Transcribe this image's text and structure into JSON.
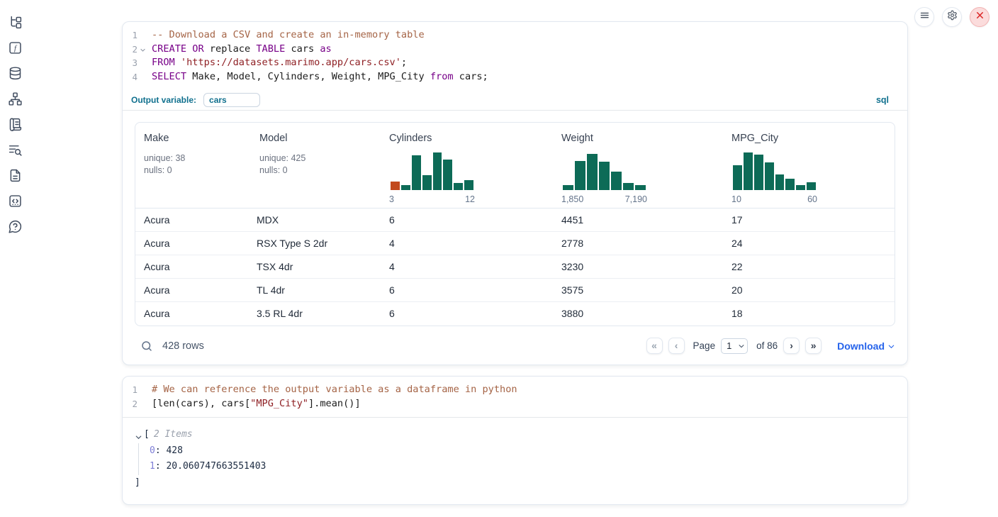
{
  "colors": {
    "hist_green": "#0d6b57",
    "hist_orange": "#c2491d",
    "accent_teal": "#10708e",
    "link_blue": "#2563eb",
    "keyword_purple": "#770088",
    "string_red": "#8f2024",
    "comment_brown": "#a56446"
  },
  "sidebar": {
    "icons": [
      "file-explorer",
      "variables",
      "data-sources",
      "dependency-graph",
      "outline",
      "logs",
      "documentation",
      "snippets",
      "help"
    ]
  },
  "topbar": {
    "buttons": [
      "menu",
      "settings",
      "shutdown"
    ]
  },
  "sql_cell": {
    "code": [
      {
        "num": "1",
        "fold": false,
        "tokens": [
          {
            "t": "-- Download a CSV and create an in-memory table",
            "c": "com"
          }
        ]
      },
      {
        "num": "2",
        "fold": true,
        "tokens": [
          {
            "t": "CREATE OR",
            "c": "kw"
          },
          {
            "t": " replace ",
            "c": "pl"
          },
          {
            "t": "TABLE",
            "c": "kw"
          },
          {
            "t": " cars ",
            "c": "pl"
          },
          {
            "t": "as",
            "c": "kw"
          }
        ]
      },
      {
        "num": "3",
        "fold": false,
        "tokens": [
          {
            "t": "FROM ",
            "c": "kw"
          },
          {
            "t": "'https://datasets.marimo.app/cars.csv'",
            "c": "str"
          },
          {
            "t": ";",
            "c": "pl"
          }
        ]
      },
      {
        "num": "4",
        "fold": false,
        "tokens": [
          {
            "t": "SELECT",
            "c": "kw"
          },
          {
            "t": " Make, Model, Cylinders, Weight, MPG_City ",
            "c": "pl"
          },
          {
            "t": "from",
            "c": "kw"
          },
          {
            "t": " cars;",
            "c": "pl"
          }
        ]
      }
    ],
    "output_variable_label": "Output variable:",
    "output_variable_value": "cars",
    "language_badge": "sql",
    "table": {
      "columns": [
        {
          "name": "Make",
          "stats": [
            "unique: 38",
            "nulls: 0"
          ]
        },
        {
          "name": "Model",
          "stats": [
            "unique: 425",
            "nulls: 0"
          ]
        },
        {
          "name": "Cylinders",
          "histogram": {
            "min_label": "3",
            "max_label": "12",
            "bars": [
              22,
              13,
              87,
              38,
              95,
              76,
              18,
              25
            ],
            "bar_colors": [
              "orange",
              "green",
              "green",
              "green",
              "green",
              "green",
              "green",
              "green"
            ]
          }
        },
        {
          "name": "Weight",
          "histogram": {
            "min_label": "1,850",
            "max_label": "7,190",
            "bars": [
              13,
              73,
              91,
              71,
              47,
              17,
              13
            ],
            "bar_colors": [
              "green",
              "green",
              "green",
              "green",
              "green",
              "green",
              "green"
            ]
          }
        },
        {
          "name": "MPG_City",
          "histogram": {
            "min_label": "10",
            "max_label": "60",
            "bars": [
              62,
              95,
              89,
              69,
              40,
              28,
              13,
              20
            ],
            "bar_colors": [
              "green",
              "green",
              "green",
              "green",
              "green",
              "green",
              "green",
              "green"
            ]
          }
        }
      ],
      "rows": [
        [
          "Acura",
          "MDX",
          "6",
          "4451",
          "17"
        ],
        [
          "Acura",
          "RSX Type S 2dr",
          "4",
          "2778",
          "24"
        ],
        [
          "Acura",
          "TSX 4dr",
          "4",
          "3230",
          "22"
        ],
        [
          "Acura",
          "TL 4dr",
          "6",
          "3575",
          "20"
        ],
        [
          "Acura",
          "3.5 RL 4dr",
          "6",
          "3880",
          "18"
        ]
      ]
    },
    "footer": {
      "row_count": "428 rows",
      "page_label": "Page",
      "page_options": [
        "1"
      ],
      "page_value": "1",
      "page_total": "of 86",
      "download_label": "Download"
    }
  },
  "python_cell": {
    "code": [
      {
        "num": "1",
        "fold": false,
        "tokens": [
          {
            "t": "# We can reference the output variable as a dataframe in python",
            "c": "com"
          }
        ]
      },
      {
        "num": "2",
        "fold": false,
        "tokens": [
          {
            "t": "[len(cars), cars[",
            "c": "pl"
          },
          {
            "t": "\"MPG_City\"",
            "c": "str"
          },
          {
            "t": "].mean()]",
            "c": "pl"
          }
        ]
      }
    ],
    "output_tree": {
      "open_bracket": "[",
      "summary": "2 Items",
      "items": [
        {
          "key": "0",
          "value": "428"
        },
        {
          "key": "1",
          "value": "20.060747663551403"
        }
      ],
      "close_bracket": "]"
    }
  }
}
